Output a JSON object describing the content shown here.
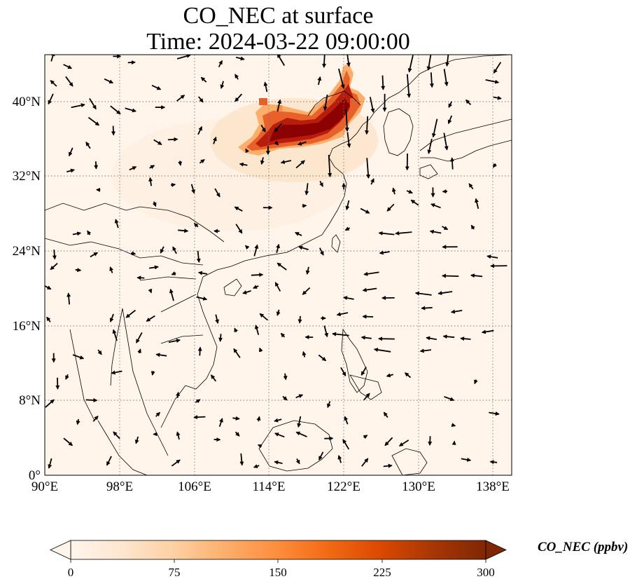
{
  "title": {
    "line1": "CO_NEC at surface",
    "line2": "Time: 2024-03-22 09:00:00"
  },
  "map": {
    "lon_range": [
      90,
      140
    ],
    "lat_range": [
      0,
      45
    ],
    "lon_ticks": [
      "90°E",
      "98°E",
      "106°E",
      "114°E",
      "122°E",
      "130°E",
      "138°E"
    ],
    "lat_ticks": [
      "0°",
      "8°N",
      "16°N",
      "24°N",
      "32°N",
      "40°N"
    ],
    "gridlines": "dotted",
    "background_color": "#fff5eb",
    "plume_color": "#8b0000",
    "plume_region": "North China Plain, approx. 110–124°E, 34–44°N",
    "wind_vectors": "black arrows"
  },
  "colorbar": {
    "label": "CO_NEC (ppbv)",
    "ticks": [
      "0",
      "75",
      "150",
      "225",
      "300"
    ],
    "min": 0,
    "max": 300,
    "extend": "both",
    "colormap": [
      "#fff5eb",
      "#fee6ce",
      "#fdd0a2",
      "#fdae6b",
      "#fd8d3c",
      "#f16913",
      "#d94801",
      "#a63603",
      "#7f2704"
    ]
  }
}
